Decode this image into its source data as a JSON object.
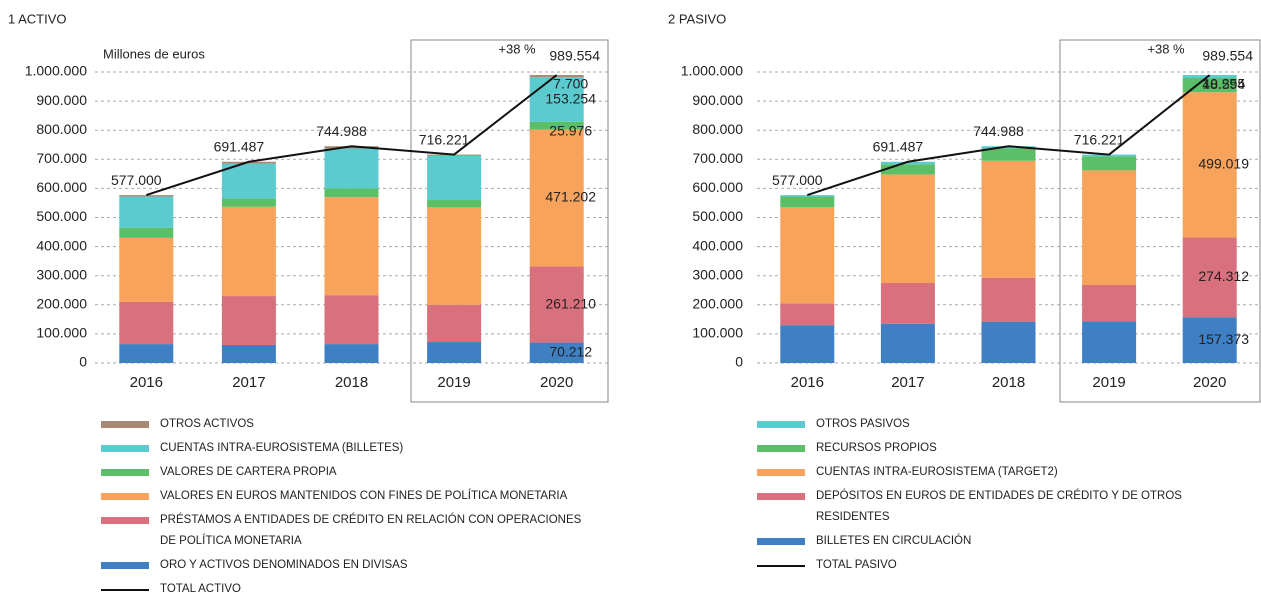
{
  "chart_data": [
    {
      "type": "bar",
      "stacked": true,
      "title": "1 ACTIVO",
      "ylabel": "Millones de euros",
      "categories": [
        "2016",
        "2017",
        "2018",
        "2019",
        "2020"
      ],
      "series": [
        {
          "name": "ORO Y ACTIVOS DENOMINADOS EN DIVISAS",
          "color": "#3f7fc4",
          "values": [
            65000,
            62000,
            65000,
            72000,
            70212
          ],
          "value_labels": [
            null,
            null,
            null,
            null,
            "70.212"
          ]
        },
        {
          "name": "PRÉSTAMOS A ENTIDADES DE CRÉDITO EN RELACIÓN CON OPERACIONES DE POLÍTICA MONETARIA",
          "color": "#d9707d",
          "values": [
            145000,
            168000,
            168000,
            128000,
            261210
          ],
          "value_labels": [
            null,
            null,
            null,
            null,
            "261.210"
          ]
        },
        {
          "name": "VALORES EN EUROS MANTENIDOS CON FINES DE POLÍTICA MONETARIA",
          "color": "#f7a35c",
          "values": [
            220000,
            307000,
            337000,
            335000,
            471202
          ],
          "value_labels": [
            null,
            null,
            null,
            null,
            "471.202"
          ]
        },
        {
          "name": "VALORES DE CARTERA PROPIA",
          "color": "#5bbf68",
          "values": [
            35000,
            28000,
            30000,
            25000,
            25976
          ],
          "value_labels": [
            null,
            null,
            null,
            null,
            "25.976"
          ]
        },
        {
          "name": "CUENTAS INTRA-EUROSISTEMA (BILLETES)",
          "color": "#5ccbd0",
          "values": [
            107000,
            120000,
            137000,
            152000,
            153254
          ],
          "value_labels": [
            null,
            null,
            null,
            null,
            "153.254"
          ]
        },
        {
          "name": "OTROS ACTIVOS",
          "color": "#a88a74",
          "values": [
            5000,
            6487,
            7988,
            4221,
            7700
          ],
          "value_labels": [
            null,
            null,
            null,
            null,
            "7.700"
          ]
        }
      ],
      "total": {
        "name": "TOTAL ACTIVO",
        "color": "#111111",
        "values": [
          577000,
          691487,
          744988,
          716221,
          989554
        ],
        "value_labels": [
          "577.000",
          "691.487",
          "744.988",
          "716.221",
          "989.554"
        ]
      },
      "annotation": "+38 %",
      "ylim": [
        0,
        1000000
      ],
      "yticks": [
        0,
        {
          "value": 100000,
          "label": "100.000"
        },
        {
          "value": 200000,
          "label": "200.000"
        },
        {
          "value": 300000,
          "label": "300.000"
        },
        {
          "value": 400000,
          "label": "400.000"
        },
        {
          "value": 500000,
          "label": "500.000"
        },
        {
          "value": 600000,
          "label": "600.000"
        },
        {
          "value": 700000,
          "label": "700.000"
        },
        {
          "value": 800000,
          "label": "800.000"
        },
        {
          "value": 900000,
          "label": "900.000"
        },
        {
          "value": 1000000,
          "label": "1.000.000"
        }
      ],
      "grid": true
    },
    {
      "type": "bar",
      "stacked": true,
      "title": "2 PASIVO",
      "categories": [
        "2016",
        "2017",
        "2018",
        "2019",
        "2020"
      ],
      "series": [
        {
          "name": "BILLETES EN CIRCULACIÓN",
          "color": "#3f7fc4",
          "values": [
            130000,
            135000,
            142000,
            143000,
            157373
          ],
          "value_labels": [
            null,
            null,
            null,
            null,
            "157.373"
          ]
        },
        {
          "name": "DEPÓSITOS EN EUROS DE ENTIDADES DE CRÉDITO Y DE OTROS RESIDENTES",
          "color": "#d9707d",
          "values": [
            75000,
            140000,
            151000,
            125000,
            274312
          ],
          "value_labels": [
            null,
            null,
            null,
            null,
            "274.312"
          ]
        },
        {
          "name": "CUENTAS INTRA-EUROSISTEMA (TARGET2)",
          "color": "#f7a35c",
          "values": [
            330000,
            373000,
            402000,
            394000,
            499019
          ],
          "value_labels": [
            null,
            null,
            null,
            null,
            "499.019"
          ]
        },
        {
          "name": "RECURSOS PROPIOS",
          "color": "#5bbf68",
          "values": [
            37000,
            35000,
            42000,
            48000,
            48594
          ],
          "value_labels": [
            null,
            null,
            null,
            null,
            "48.594"
          ]
        },
        {
          "name": "OTROS PASIVOS",
          "color": "#5ccbd0",
          "values": [
            5000,
            8487,
            7988,
            6221,
            10255
          ],
          "value_labels": [
            null,
            null,
            null,
            null,
            "10.255"
          ]
        }
      ],
      "total": {
        "name": "TOTAL PASIVO",
        "color": "#111111",
        "values": [
          577000,
          691487,
          744988,
          716221,
          989554
        ],
        "value_labels": [
          "577.000",
          "691.487",
          "744.988",
          "716.221",
          "989.554"
        ]
      },
      "annotation": "+38 %",
      "ylim": [
        0,
        1000000
      ],
      "yticks": [
        0,
        {
          "value": 100000,
          "label": "100.000"
        },
        {
          "value": 200000,
          "label": "200.000"
        },
        {
          "value": 300000,
          "label": "300.000"
        },
        {
          "value": 400000,
          "label": "400.000"
        },
        {
          "value": 500000,
          "label": "500.000"
        },
        {
          "value": 600000,
          "label": "600.000"
        },
        {
          "value": 700000,
          "label": "700.000"
        },
        {
          "value": 800000,
          "label": "800.000"
        },
        {
          "value": 900000,
          "label": "900.000"
        },
        {
          "value": 1000000,
          "label": "1.000.000"
        }
      ],
      "grid": true
    }
  ]
}
